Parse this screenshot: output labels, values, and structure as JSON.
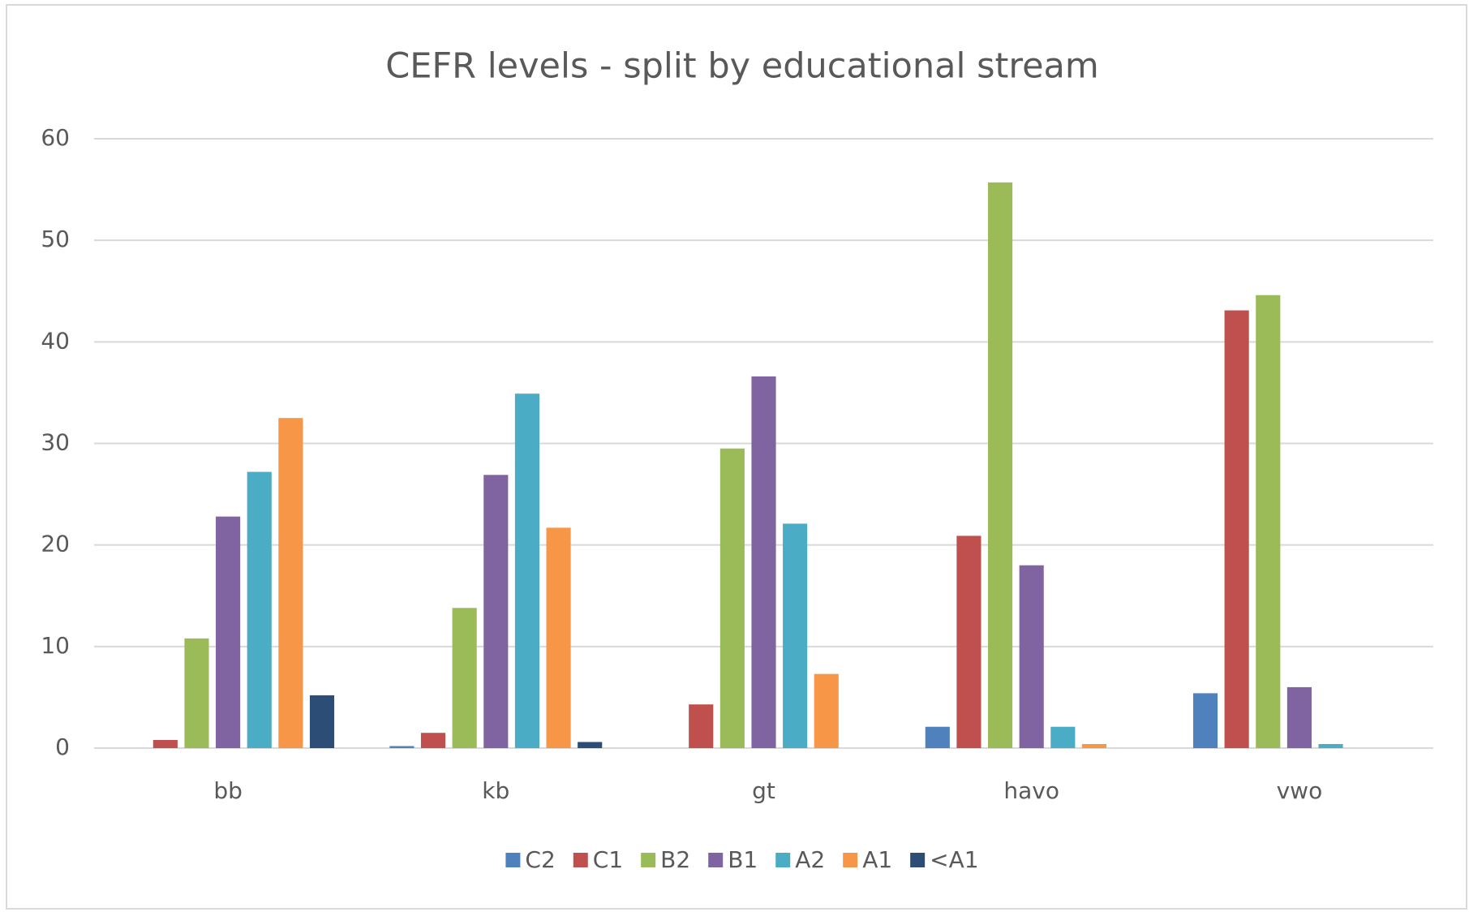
{
  "chart_data": {
    "type": "bar",
    "title": "CEFR levels - split by educational stream",
    "categories": [
      "bb",
      "kb",
      "gt",
      "havo",
      "vwo"
    ],
    "series": [
      {
        "name": "C2",
        "color": "#4f81bd",
        "values": [
          0,
          0.2,
          0,
          2.1,
          5.4
        ]
      },
      {
        "name": "C1",
        "color": "#c0504d",
        "values": [
          0.8,
          1.5,
          4.3,
          20.9,
          43.1
        ]
      },
      {
        "name": "B2",
        "color": "#9bbb59",
        "values": [
          10.8,
          13.8,
          29.5,
          55.7,
          44.6
        ]
      },
      {
        "name": "B1",
        "color": "#8064a2",
        "values": [
          22.8,
          26.9,
          36.6,
          18.0,
          6.0
        ]
      },
      {
        "name": "A2",
        "color": "#4bacc6",
        "values": [
          27.2,
          34.9,
          22.1,
          2.1,
          0.4
        ]
      },
      {
        "name": "A1",
        "color": "#f79646",
        "values": [
          32.5,
          21.7,
          7.3,
          0.4,
          0
        ]
      },
      {
        "name": "<A1",
        "color": "#2c4d75",
        "values": [
          5.2,
          0.6,
          0,
          0,
          0
        ]
      }
    ],
    "ylim": [
      0,
      60
    ],
    "yticks": [
      0,
      10,
      20,
      30,
      40,
      50,
      60
    ],
    "grid": true,
    "legend": "bottom"
  }
}
